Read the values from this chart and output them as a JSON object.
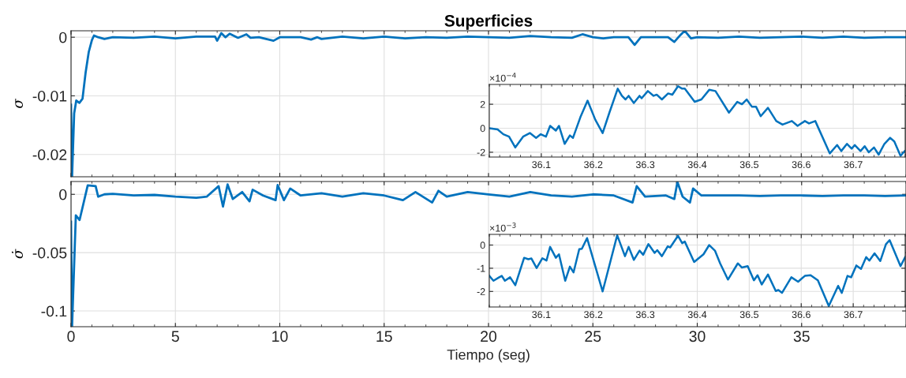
{
  "chart_data": [
    {
      "type": "line",
      "title": "Superficies",
      "ylabel": "σ",
      "xlim": [
        0,
        40
      ],
      "xticks": [
        0,
        5,
        10,
        15,
        20,
        25,
        30,
        35
      ],
      "ylim": [
        -0.0238,
        0.0011
      ],
      "yticks": [
        -0.02,
        -0.01,
        0
      ],
      "grid": true,
      "tick_labels": "y",
      "line_style": "solid",
      "series": [
        {
          "color": "#0072bd",
          "x": [
            0,
            0.05,
            0.15,
            0.25,
            0.4,
            0.55,
            0.7,
            0.85,
            1.0,
            1.1,
            1.3,
            1.6,
            2,
            3,
            4,
            5,
            6,
            6.9,
            7.0,
            7.2,
            7.4,
            7.6,
            8,
            8.4,
            8.6,
            9,
            9.7,
            10,
            11,
            11.5,
            11.8,
            12,
            13,
            14,
            15,
            16,
            17,
            18,
            19,
            20,
            21,
            22,
            23,
            24,
            24.5,
            25,
            25.5,
            26,
            26.7,
            27.0,
            27.3,
            28,
            28.6,
            28.9,
            29.2,
            29.4,
            29.7,
            30,
            31,
            32,
            33,
            34,
            35,
            36,
            37,
            38,
            39,
            40
          ],
          "values": [
            -0.0115,
            -0.0238,
            -0.013,
            -0.0108,
            -0.0112,
            -0.0105,
            -0.006,
            -0.0025,
            -0.0005,
            0.0003,
            0.0,
            -0.0003,
            0.0,
            -0.0001,
            0.0001,
            -0.0002,
            0.0001,
            0.0001,
            -0.0006,
            0.0007,
            0.0,
            0.0006,
            -0.0001,
            0.0005,
            -0.0001,
            0.0,
            -0.0006,
            0.0,
            0.0,
            -0.0004,
            0.0,
            -0.0003,
            0.0001,
            -0.0002,
            0.0001,
            -0.0002,
            0.0,
            -0.0001,
            0.0001,
            0.0,
            -0.0001,
            0.0002,
            0.0,
            -0.0001,
            0.0005,
            0.0,
            -0.0002,
            0.0,
            0.0,
            -0.0013,
            0.0,
            0.0,
            0.0,
            -0.0008,
            0.0004,
            0.0011,
            -0.0002,
            0.0,
            -0.0001,
            0.0001,
            -0.0001,
            0.0,
            0.0001,
            -0.0001,
            0.0001,
            -0.0001,
            0.0,
            0.0
          ]
        }
      ]
    },
    {
      "type": "line",
      "xlabel": "Tiempo (seg)",
      "ylabel": "σ̇",
      "xlim": [
        0,
        40
      ],
      "xticks": [
        0,
        5,
        10,
        15,
        20,
        25,
        30,
        35
      ],
      "ylim": [
        -0.1135,
        0.011
      ],
      "yticks": [
        -0.1,
        -0.05,
        0
      ],
      "grid": true,
      "line_style": "solid",
      "series": [
        {
          "color": "#0072bd",
          "x": [
            0,
            0.05,
            0.23,
            0.41,
            0.8,
            1.18,
            1.3,
            1.6,
            2,
            3,
            4,
            5,
            6,
            6.5,
            7.07,
            7.28,
            7.5,
            7.75,
            8.2,
            8.55,
            8.7,
            9.2,
            9.8,
            9.9,
            10.2,
            10.5,
            11,
            12,
            13,
            14,
            15,
            15.9,
            16.5,
            17.3,
            17.6,
            18,
            19,
            20,
            21,
            22,
            23,
            24,
            25,
            26,
            26.9,
            27.1,
            27.5,
            28.5,
            28.9,
            29.05,
            29.3,
            29.65,
            29.8,
            30.2,
            31,
            32,
            33,
            34,
            35,
            36,
            37,
            38,
            39,
            40
          ],
          "values": [
            -0.0235,
            -0.113,
            -0.018,
            -0.022,
            0.0077,
            0.007,
            -0.002,
            0.0,
            0.0005,
            -0.001,
            -0.0005,
            -0.002,
            -0.003,
            -0.002,
            0.007,
            -0.0105,
            0.0085,
            -0.004,
            0.002,
            -0.006,
            0.004,
            -0.001,
            -0.005,
            0.008,
            -0.005,
            0.005,
            -0.001,
            0.001,
            -0.002,
            0.001,
            -0.001,
            -0.005,
            0.002,
            -0.007,
            0.003,
            -0.002,
            0.002,
            0.0,
            -0.002,
            0.002,
            -0.001,
            -0.002,
            0.0,
            -0.001,
            -0.007,
            0.007,
            -0.002,
            -0.001,
            -0.004,
            0.0105,
            -0.002,
            -0.007,
            0.005,
            -0.001,
            -0.001,
            -0.001,
            -0.0015,
            -0.001,
            -0.001,
            -0.0015,
            -0.001,
            -0.001,
            -0.0015,
            -0.001
          ]
        }
      ]
    },
    {
      "type": "line",
      "annotations": [
        "×10$^{−4}$"
      ],
      "xlim": [
        36.0,
        36.8
      ],
      "xticks": [
        36.1,
        36.2,
        36.3,
        36.4,
        36.5,
        36.6,
        36.7
      ],
      "ylim": [
        -2.4,
        3.65
      ],
      "yticks": [
        -2,
        0,
        2
      ],
      "grid": true,
      "line_style": "solid",
      "series": [
        {
          "color": "#0072bd",
          "x": [
            36.0,
            36.016,
            36.027,
            36.038,
            36.05,
            36.065,
            36.078,
            36.09,
            36.099,
            36.109,
            36.117,
            36.128,
            36.134,
            36.145,
            36.155,
            36.161,
            36.175,
            36.189,
            36.204,
            36.218,
            36.231,
            36.247,
            36.255,
            36.262,
            36.268,
            36.278,
            36.289,
            36.293,
            36.305,
            36.316,
            36.322,
            36.332,
            36.344,
            36.352,
            36.363,
            36.371,
            36.376,
            36.395,
            36.408,
            36.423,
            36.435,
            36.461,
            36.477,
            36.486,
            36.495,
            36.505,
            36.513,
            36.522,
            36.536,
            36.552,
            36.564,
            36.582,
            36.593,
            36.607,
            36.615,
            36.627,
            36.655,
            36.669,
            36.677,
            36.688,
            36.697,
            36.703,
            36.714,
            36.722,
            36.73,
            36.74,
            36.749,
            36.76,
            36.771,
            36.779,
            36.791,
            36.799
          ],
          "values": [
            0,
            -0.1,
            -0.5,
            -0.7,
            -1.6,
            -0.7,
            -0.4,
            -0.8,
            -0.5,
            -0.7,
            0.2,
            -0.2,
            0.2,
            -1.3,
            -0.6,
            -0.8,
            0.9,
            2.3,
            0.7,
            -0.4,
            1.3,
            3.3,
            2.7,
            2.4,
            2.7,
            2.1,
            2.7,
            2.5,
            3.1,
            2.7,
            2.8,
            2.4,
            2.9,
            2.8,
            3.5,
            3.3,
            3.3,
            2.2,
            2.4,
            3.2,
            3.1,
            1.3,
            2.2,
            2.0,
            2.4,
            1.8,
            1.8,
            1.0,
            1.7,
            0.6,
            0.3,
            0.6,
            0.2,
            0.6,
            0.4,
            0.6,
            -2.1,
            -1.4,
            -1.9,
            -1.3,
            -1.7,
            -1.4,
            -1.9,
            -1.5,
            -2.0,
            -1.6,
            -2.2,
            -1.3,
            -0.8,
            -1.1,
            -2.3,
            -1.9
          ]
        }
      ]
    },
    {
      "type": "line",
      "annotations": [
        "×10$^{−3}$"
      ],
      "xlim": [
        36.0,
        36.8
      ],
      "xticks": [
        36.1,
        36.2,
        36.3,
        36.4,
        36.5,
        36.6,
        36.7
      ],
      "ylim": [
        -2.67,
        0.46
      ],
      "yticks": [
        -2,
        -1,
        0
      ],
      "grid": true,
      "line_style": "solid",
      "series": [
        {
          "color": "#0072bd",
          "x": [
            36.0,
            36.008,
            36.019,
            36.024,
            36.03,
            36.04,
            36.05,
            36.067,
            36.075,
            36.081,
            36.091,
            36.102,
            36.11,
            36.117,
            36.128,
            36.134,
            36.146,
            36.155,
            36.162,
            36.173,
            36.178,
            36.188,
            36.218,
            36.246,
            36.261,
            36.268,
            36.278,
            36.289,
            36.296,
            36.306,
            36.318,
            36.323,
            36.332,
            36.343,
            36.348,
            36.363,
            36.371,
            36.376,
            36.394,
            36.412,
            36.423,
            36.434,
            36.444,
            36.459,
            36.478,
            36.486,
            36.497,
            36.509,
            36.516,
            36.524,
            36.536,
            36.551,
            36.556,
            36.563,
            36.581,
            36.594,
            36.607,
            36.618,
            36.632,
            36.653,
            36.671,
            36.678,
            36.689,
            36.696,
            36.706,
            36.715,
            36.725,
            36.731,
            36.741,
            36.752,
            36.763,
            36.77,
            36.791,
            36.8
          ],
          "values": [
            -1.33,
            -1.54,
            -1.39,
            -1.33,
            -1.54,
            -1.39,
            -1.73,
            -0.55,
            -0.61,
            -0.58,
            -0.99,
            -0.57,
            -0.67,
            -0.08,
            -0.55,
            -0.4,
            -1.54,
            -0.93,
            -1.18,
            -0.18,
            -0.16,
            0.3,
            -2.0,
            0.42,
            -0.48,
            -0.08,
            -0.64,
            -0.24,
            -0.42,
            0.04,
            -0.34,
            -0.22,
            -0.48,
            -0.06,
            -0.1,
            0.4,
            0.08,
            0.15,
            -0.73,
            -0.4,
            0.0,
            -0.24,
            -0.79,
            -1.49,
            -0.79,
            -0.97,
            -0.91,
            -1.52,
            -1.3,
            -1.7,
            -1.27,
            -1.98,
            -1.94,
            -2.06,
            -1.39,
            -1.58,
            -1.33,
            -1.3,
            -1.52,
            -2.63,
            -1.76,
            -2.06,
            -1.33,
            -1.39,
            -0.88,
            -1.03,
            -0.52,
            -0.67,
            -0.36,
            -0.69,
            0.04,
            0.21,
            -0.91,
            -0.52
          ]
        }
      ]
    }
  ]
}
